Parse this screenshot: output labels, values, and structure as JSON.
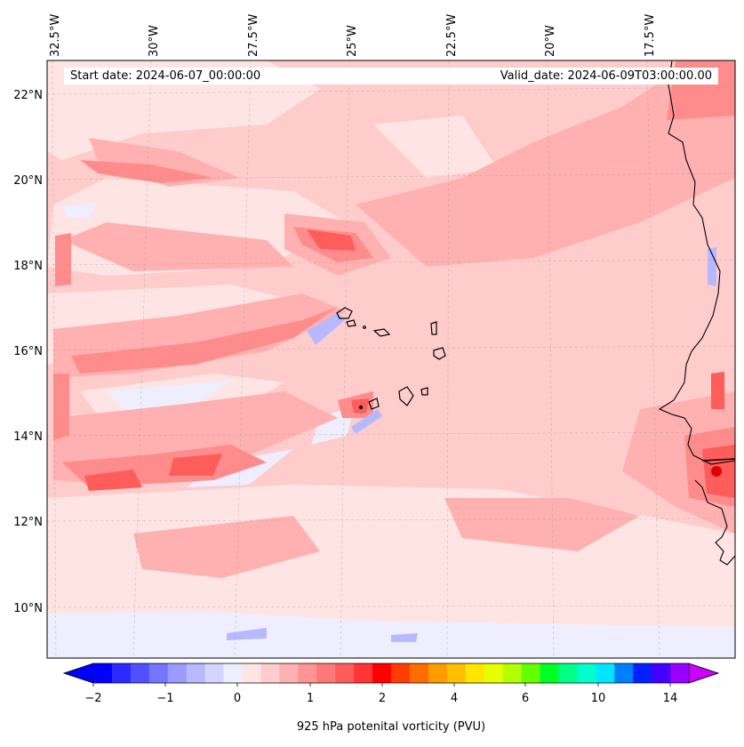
{
  "map": {
    "start_label": "Start date: 2024-06-07_00:00:00",
    "valid_label": "Valid_date: 2024-06-09T03:00:00.00",
    "lon_ticks": [
      "32.5°W",
      "30°W",
      "27.5°W",
      "25°W",
      "22.5°W",
      "20°W",
      "17.5°W"
    ],
    "lat_ticks": [
      "22°N",
      "20°N",
      "18°N",
      "16°N",
      "14°N",
      "12°N",
      "10°N"
    ],
    "field": "925 hPa potential vorticity",
    "islands": [
      "Cape Verde islands"
    ],
    "coast": "West African coastline (Senegal / Gambia / Guinea-Bissau)"
  },
  "colorbar": {
    "label": "925 hPa potenital vorticity (PVU)",
    "ticks": [
      "−2",
      "−1",
      "0",
      "1",
      "2",
      "4",
      "6",
      "10",
      "14"
    ],
    "colors": [
      "#0000ff",
      "#2a2aff",
      "#5050ff",
      "#7575ff",
      "#9a9aff",
      "#b8b8ff",
      "#d4d4ff",
      "#eeeeff",
      "#ffe4e4",
      "#ffcccc",
      "#ffb0b0",
      "#ff9494",
      "#ff7878",
      "#ff5c5c",
      "#ff3535",
      "#ff0000",
      "#ff3d00",
      "#ff6d00",
      "#ff9a00",
      "#ffbf00",
      "#ffe500",
      "#e6ff00",
      "#b3ff00",
      "#66ff00",
      "#00ff22",
      "#00ff88",
      "#00ffcc",
      "#00e6ff",
      "#0080ff",
      "#0022ff",
      "#4400ff",
      "#9900ff"
    ],
    "extend_low": "#0000ff",
    "extend_high": "#cc00ff"
  }
}
